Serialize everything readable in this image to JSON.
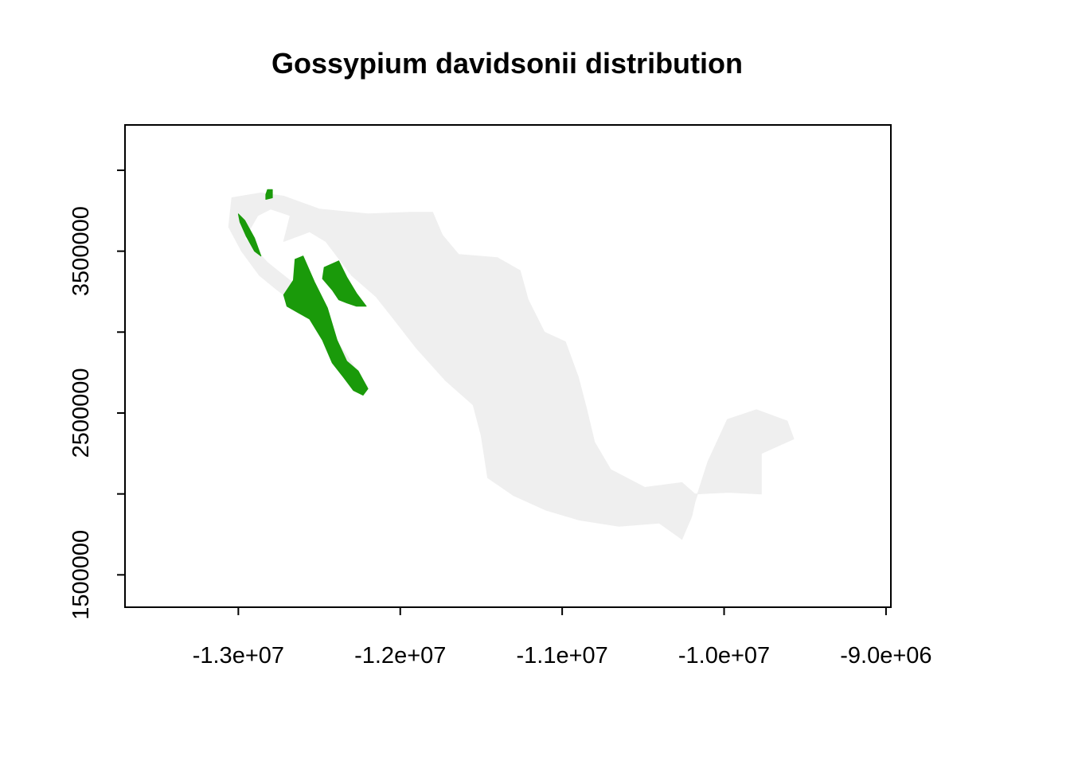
{
  "chart_data": {
    "type": "map",
    "title": "Gossypium davidsonii distribution",
    "xlabel": "",
    "ylabel": "",
    "x_ticks": [
      {
        "value": -13000000,
        "label": "-1.3e+07"
      },
      {
        "value": -12000000,
        "label": "-1.2e+07"
      },
      {
        "value": -11000000,
        "label": "-1.1e+07"
      },
      {
        "value": -10000000,
        "label": "-1.0e+07"
      },
      {
        "value": -9000000,
        "label": "-9.0e+06"
      }
    ],
    "y_ticks": [
      {
        "value": 1500000,
        "label": "1500000"
      },
      {
        "value": 2000000,
        "label": ""
      },
      {
        "value": 2500000,
        "label": "2500000"
      },
      {
        "value": 3000000,
        "label": ""
      },
      {
        "value": 3500000,
        "label": "3500000"
      },
      {
        "value": 4000000,
        "label": ""
      }
    ],
    "xlim": [
      -13700000,
      -8970000
    ],
    "ylim": [
      1300000,
      4280000
    ],
    "colors": {
      "background_region": "#efefef",
      "distribution": "#1a9a0a"
    },
    "layers": [
      {
        "name": "background-region",
        "color_key": "background_region",
        "polygons": [
          [
            [
              -13040000,
              3830000
            ],
            [
              -12860000,
              3860000
            ],
            [
              -12720000,
              3840000
            ],
            [
              -12500000,
              3760000
            ],
            [
              -12200000,
              3730000
            ],
            [
              -11940000,
              3740000
            ],
            [
              -11800000,
              3740000
            ],
            [
              -11740000,
              3600000
            ],
            [
              -11640000,
              3480000
            ],
            [
              -11400000,
              3460000
            ],
            [
              -11260000,
              3380000
            ],
            [
              -11210000,
              3200000
            ],
            [
              -11110000,
              3000000
            ],
            [
              -10980000,
              2940000
            ],
            [
              -10900000,
              2720000
            ],
            [
              -10850000,
              2530000
            ],
            [
              -10800000,
              2320000
            ],
            [
              -10700000,
              2150000
            ],
            [
              -10490000,
              2040000
            ],
            [
              -10260000,
              2070000
            ],
            [
              -10180000,
              2000000
            ],
            [
              -9970000,
              2010000
            ],
            [
              -9770000,
              2000000
            ],
            [
              -9770000,
              2250000
            ],
            [
              -9570000,
              2340000
            ],
            [
              -9610000,
              2450000
            ],
            [
              -9800000,
              2520000
            ],
            [
              -9980000,
              2460000
            ],
            [
              -10100000,
              2200000
            ],
            [
              -10180000,
              1950000
            ],
            [
              -10200000,
              1860000
            ],
            [
              -10260000,
              1720000
            ],
            [
              -10400000,
              1820000
            ],
            [
              -10650000,
              1800000
            ],
            [
              -10900000,
              1840000
            ],
            [
              -11100000,
              1900000
            ],
            [
              -11300000,
              1990000
            ],
            [
              -11460000,
              2100000
            ],
            [
              -11500000,
              2360000
            ],
            [
              -11550000,
              2550000
            ],
            [
              -11720000,
              2700000
            ],
            [
              -11900000,
              2900000
            ],
            [
              -12040000,
              3080000
            ],
            [
              -12150000,
              3220000
            ],
            [
              -12300000,
              3350000
            ],
            [
              -12460000,
              3560000
            ],
            [
              -12560000,
              3620000
            ],
            [
              -12720000,
              3560000
            ],
            [
              -12680000,
              3720000
            ],
            [
              -12800000,
              3760000
            ],
            [
              -12880000,
              3720000
            ],
            [
              -12960000,
              3580000
            ],
            [
              -12820000,
              3430000
            ],
            [
              -12620000,
              3270000
            ],
            [
              -12450000,
              3030000
            ],
            [
              -12320000,
              2840000
            ],
            [
              -12200000,
              2660000
            ],
            [
              -12260000,
              2640000
            ],
            [
              -12350000,
              2800000
            ],
            [
              -12440000,
              2960000
            ],
            [
              -12600000,
              3140000
            ],
            [
              -12760000,
              3260000
            ],
            [
              -12870000,
              3350000
            ],
            [
              -12980000,
              3500000
            ],
            [
              -13060000,
              3650000
            ],
            [
              -13040000,
              3830000
            ]
          ]
        ]
      },
      {
        "name": "distribution",
        "color_key": "distribution",
        "polygons": [
          [
            [
              -12600000,
              3470000
            ],
            [
              -12530000,
              3310000
            ],
            [
              -12450000,
              3150000
            ],
            [
              -12390000,
              2950000
            ],
            [
              -12330000,
              2820000
            ],
            [
              -12260000,
              2760000
            ],
            [
              -12200000,
              2650000
            ],
            [
              -12230000,
              2610000
            ],
            [
              -12290000,
              2640000
            ],
            [
              -12350000,
              2720000
            ],
            [
              -12420000,
              2810000
            ],
            [
              -12480000,
              2950000
            ],
            [
              -12560000,
              3080000
            ],
            [
              -12630000,
              3120000
            ],
            [
              -12700000,
              3160000
            ],
            [
              -12720000,
              3230000
            ],
            [
              -12660000,
              3320000
            ],
            [
              -12650000,
              3450000
            ],
            [
              -12600000,
              3470000
            ]
          ],
          [
            [
              -12470000,
              3400000
            ],
            [
              -12380000,
              3440000
            ],
            [
              -12330000,
              3340000
            ],
            [
              -12270000,
              3240000
            ],
            [
              -12210000,
              3160000
            ],
            [
              -12270000,
              3160000
            ],
            [
              -12330000,
              3180000
            ],
            [
              -12380000,
              3200000
            ],
            [
              -12420000,
              3260000
            ],
            [
              -12480000,
              3330000
            ],
            [
              -12470000,
              3400000
            ]
          ],
          [
            [
              -13000000,
              3730000
            ],
            [
              -12960000,
              3690000
            ],
            [
              -12900000,
              3580000
            ],
            [
              -12860000,
              3470000
            ],
            [
              -12900000,
              3500000
            ],
            [
              -12950000,
              3590000
            ],
            [
              -12990000,
              3680000
            ],
            [
              -13000000,
              3730000
            ]
          ],
          [
            [
              -12820000,
              3880000
            ],
            [
              -12790000,
              3880000
            ],
            [
              -12790000,
              3830000
            ],
            [
              -12830000,
              3820000
            ],
            [
              -12830000,
              3850000
            ],
            [
              -12820000,
              3880000
            ]
          ]
        ]
      }
    ]
  }
}
